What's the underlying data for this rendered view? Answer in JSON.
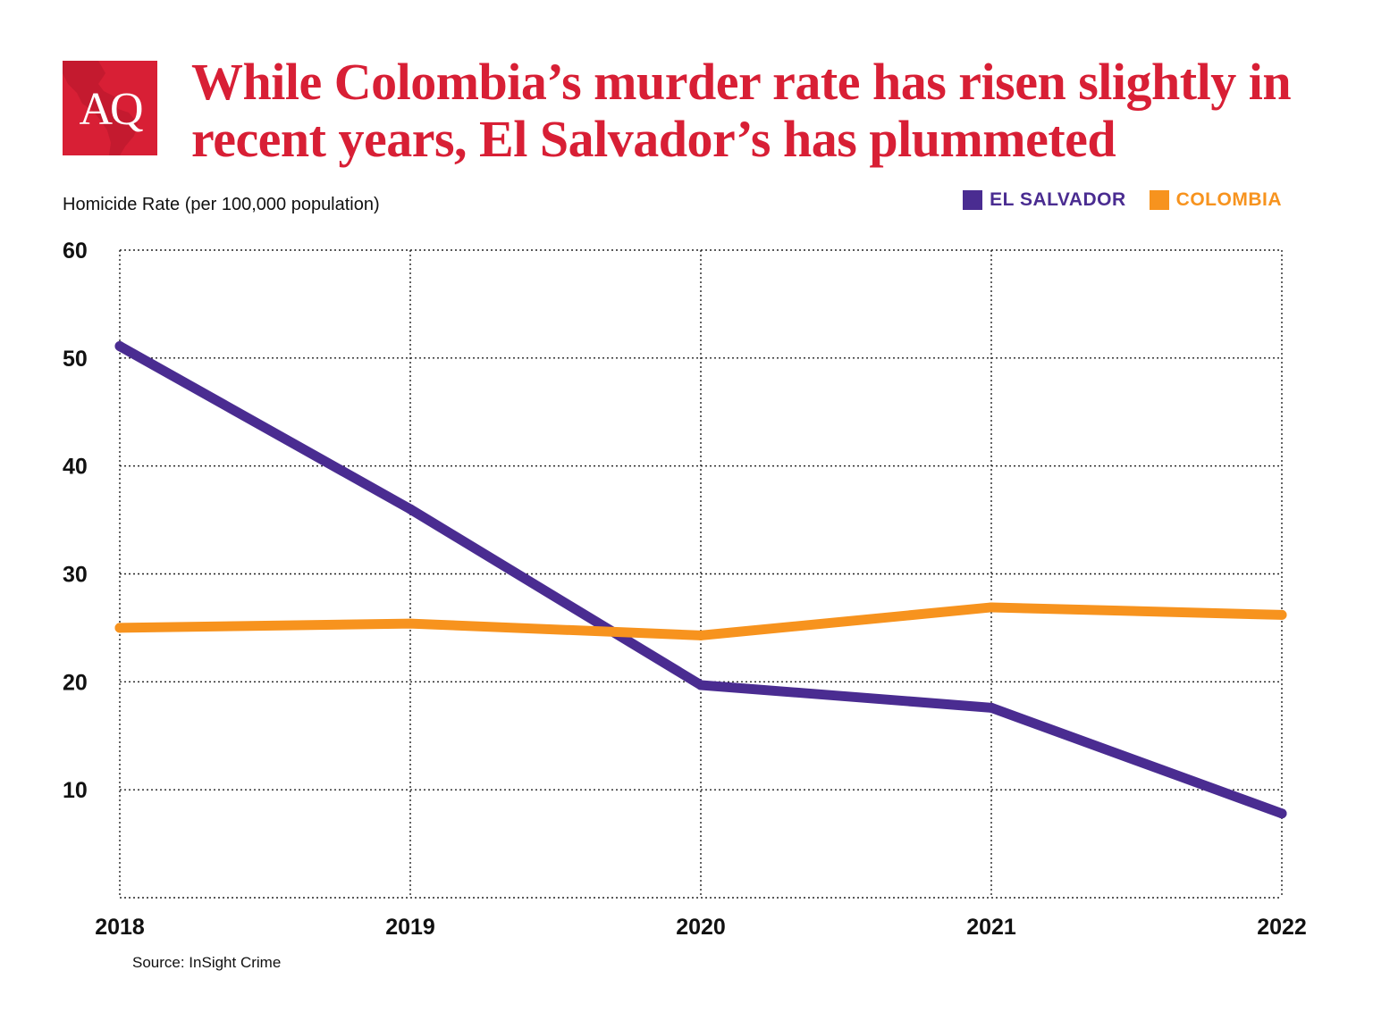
{
  "logo": {
    "text": "AQ"
  },
  "colors": {
    "brand": "#d81f35",
    "el_salvador": "#4a2c91",
    "colombia": "#f7931e",
    "grid": "#222222"
  },
  "chart_data": {
    "type": "line",
    "title": "While Colombia’s murder rate has risen slightly in recent years, El Salvador’s has plummeted",
    "ylabel": "Homicide Rate (per 100,000 population)",
    "xlabel": "",
    "x": [
      "2018",
      "2019",
      "2020",
      "2021",
      "2022"
    ],
    "ylim": [
      0,
      60
    ],
    "yticks": [
      10,
      20,
      30,
      40,
      50,
      60
    ],
    "grid": true,
    "legend_position": "top-right",
    "series": [
      {
        "name": "EL SALVADOR",
        "color": "#4a2c91",
        "values": [
          51.1,
          36.0,
          19.7,
          17.6,
          7.8
        ]
      },
      {
        "name": "COLOMBIA",
        "color": "#f7931e",
        "values": [
          25.0,
          25.4,
          24.3,
          26.9,
          26.2
        ]
      }
    ]
  },
  "source": "Source: InSight Crime"
}
